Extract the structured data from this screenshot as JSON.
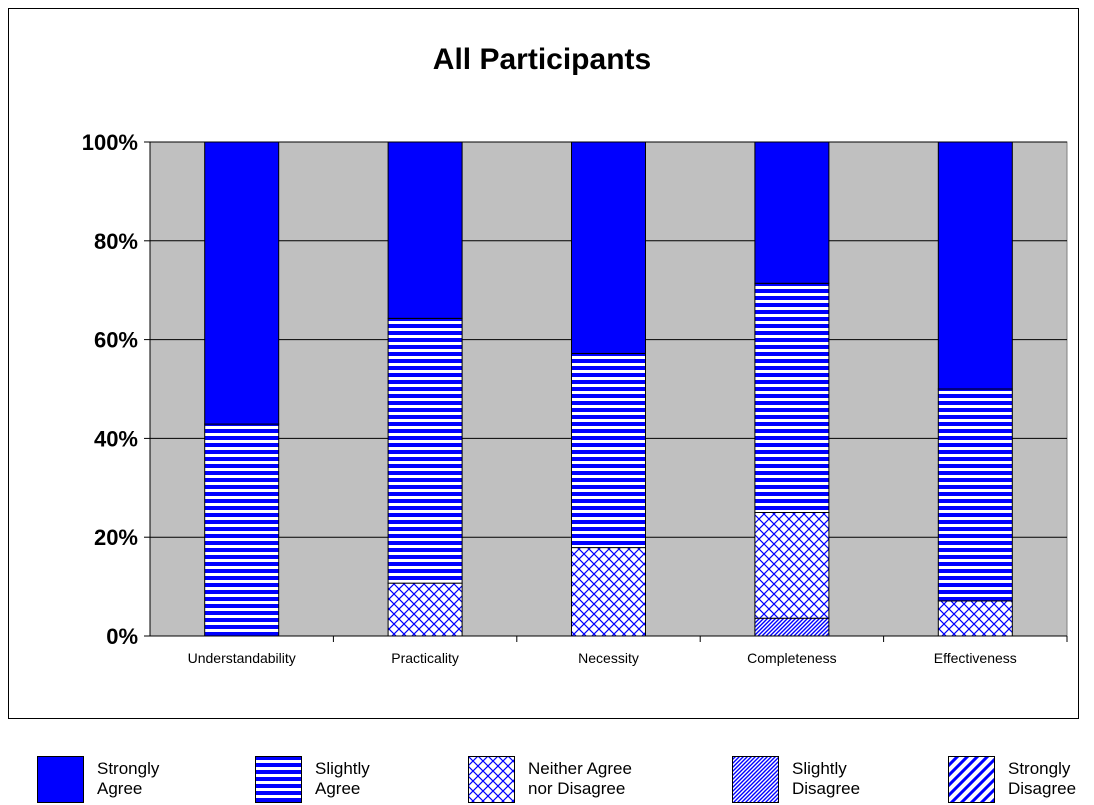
{
  "chart_data": {
    "type": "bar",
    "stacked": true,
    "title": "All Participants",
    "categories": [
      "Understandability",
      "Practicality",
      "Necessity",
      "Completeness",
      "Effectiveness"
    ],
    "y_ticks": [
      "0%",
      "20%",
      "40%",
      "60%",
      "80%",
      "100%"
    ],
    "ylim": [
      0,
      100
    ],
    "grid": true,
    "legend_position": "bottom",
    "series": [
      {
        "name": "Strongly Disagree",
        "name_lines": [
          "Strongly",
          "Disagree"
        ],
        "pattern": "wide-diagonal",
        "values": [
          0,
          0,
          0,
          0,
          0
        ]
      },
      {
        "name": "Slightly Disagree",
        "name_lines": [
          "Slightly",
          "Disagree"
        ],
        "pattern": "narrow-diagonal",
        "values": [
          0,
          0,
          0,
          3.6,
          0
        ]
      },
      {
        "name": "Neither Agree nor Disagree",
        "name_lines": [
          "Neither Agree",
          "nor Disagree"
        ],
        "pattern": "crosshatch",
        "values": [
          0,
          10.7,
          17.9,
          21.4,
          7.1
        ]
      },
      {
        "name": "Slightly Agree",
        "name_lines": [
          "Slightly",
          "Agree"
        ],
        "pattern": "horizontal-stripes",
        "values": [
          42.9,
          53.6,
          39.3,
          46.4,
          42.9
        ]
      },
      {
        "name": "Strongly Agree",
        "name_lines": [
          "Strongly",
          "Agree"
        ],
        "pattern": "solid",
        "values": [
          57.1,
          35.7,
          42.8,
          28.6,
          50.0
        ]
      }
    ],
    "colors": {
      "primary": "#0000ff",
      "plot_bg": "#c0c0c0",
      "grid": "#000000"
    }
  },
  "legend_order": [
    "Strongly Agree",
    "Slightly Agree",
    "Neither Agree nor Disagree",
    "Slightly Disagree",
    "Strongly Disagree"
  ]
}
